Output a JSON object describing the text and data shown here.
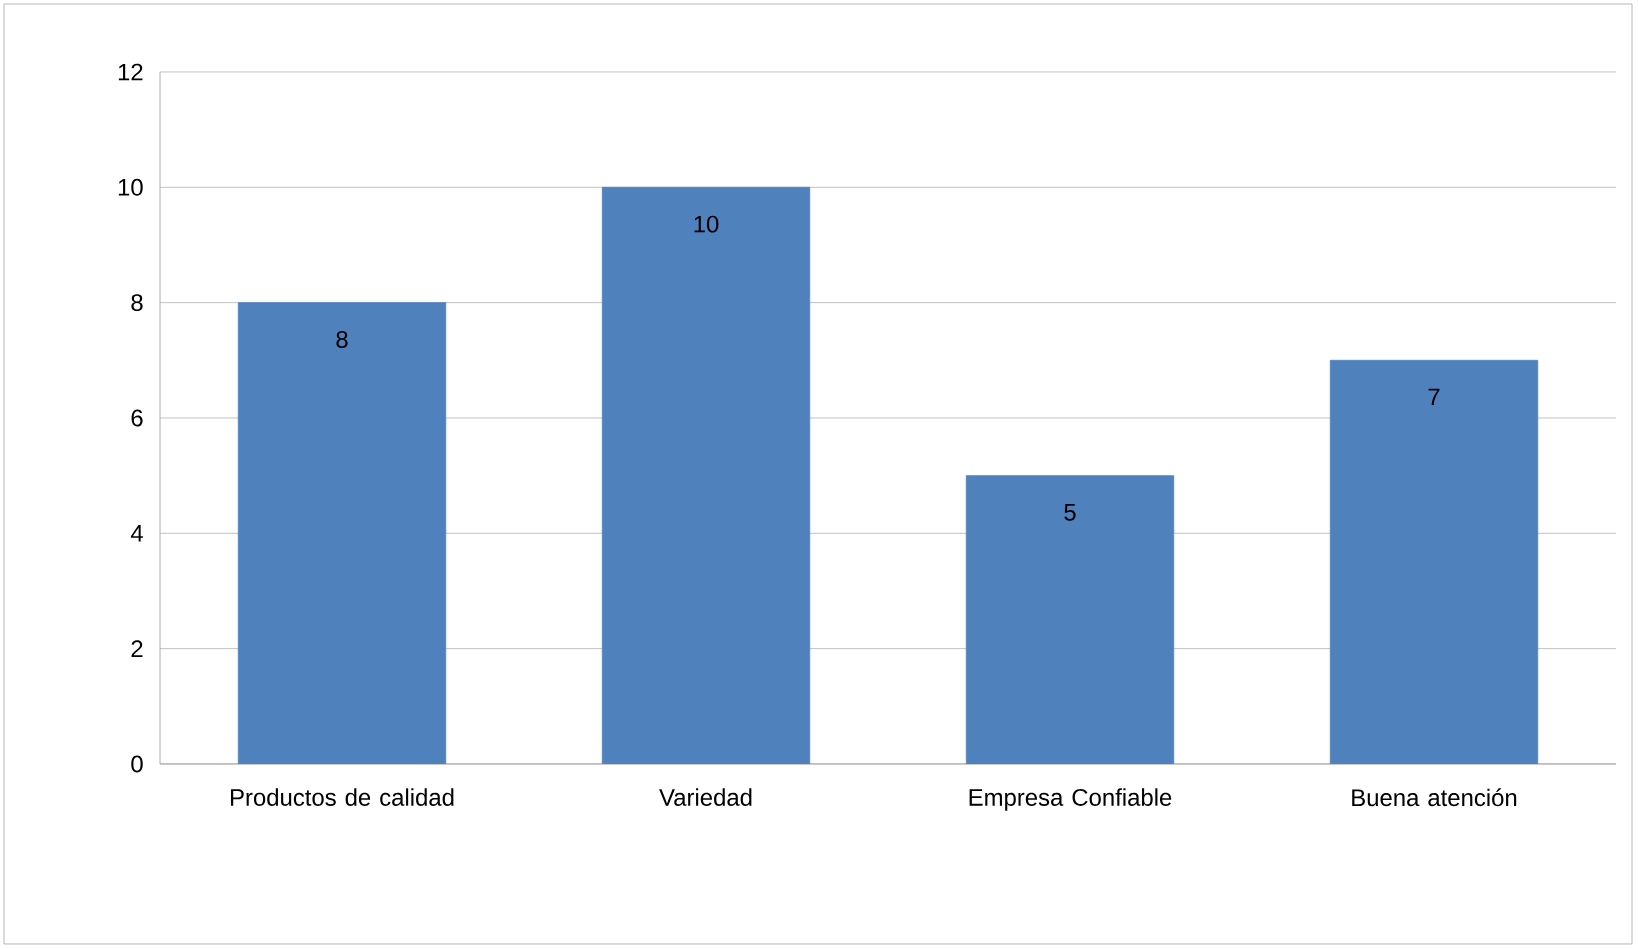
{
  "chart_data": {
    "type": "bar",
    "categories": [
      "Productos de calidad",
      "Variedad",
      "Empresa Confiable",
      "Buena atención"
    ],
    "values": [
      8,
      10,
      5,
      7
    ],
    "color": "#4f81bd",
    "ylim": [
      0,
      12
    ],
    "yticks": [
      0,
      2,
      4,
      6,
      8,
      10,
      12
    ],
    "grid": "y",
    "data_labels": true
  }
}
